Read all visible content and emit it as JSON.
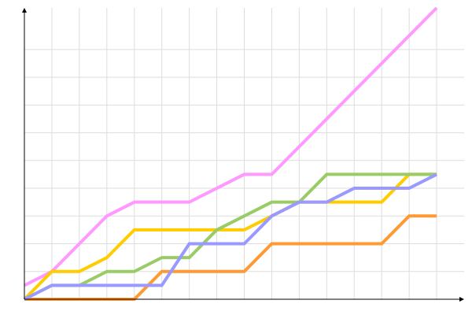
{
  "chart_data": {
    "type": "line",
    "title": "",
    "xlabel": "",
    "ylabel": "",
    "x": [
      0,
      1,
      2,
      3,
      4,
      5,
      6,
      7,
      8,
      9,
      10,
      11,
      12,
      13,
      14,
      15
    ],
    "xlim": [
      0,
      16
    ],
    "ylim": [
      0,
      10.5
    ],
    "grid": true,
    "y_gridlines": [
      1,
      2,
      3,
      4,
      5,
      6,
      7,
      8,
      9
    ],
    "axis_color": "#000000",
    "grid_color": "#dddddd",
    "series": [
      {
        "color": "#ff99ff",
        "values": [
          0.5,
          1,
          2,
          3,
          3.5,
          3.5,
          3.5,
          4,
          4.5,
          4.5,
          5.5,
          6.5,
          7.5,
          8.5,
          9.5,
          10.5
        ]
      },
      {
        "color": "#ffcc00",
        "values": [
          0,
          1,
          1,
          1.5,
          2.5,
          2.5,
          2.5,
          2.5,
          2.5,
          3,
          3.5,
          3.5,
          3.5,
          3.5,
          4.5,
          4.5
        ]
      },
      {
        "color": "#99cc66",
        "values": [
          0,
          0.5,
          0.5,
          1,
          1,
          1.5,
          1.5,
          2.5,
          3,
          3.5,
          3.5,
          4.5,
          4.5,
          4.5,
          4.5,
          4.5
        ]
      },
      {
        "color": "#ff9933",
        "values": [
          0,
          0,
          0,
          0,
          0,
          1,
          1,
          1,
          1,
          2,
          2,
          2,
          2,
          2,
          3,
          3
        ]
      },
      {
        "color": "#9999ff",
        "values": [
          0,
          0.5,
          0.5,
          0.5,
          0.5,
          0.5,
          2,
          2,
          2,
          3,
          3.5,
          3.5,
          4,
          4,
          4,
          4.5
        ]
      }
    ]
  }
}
